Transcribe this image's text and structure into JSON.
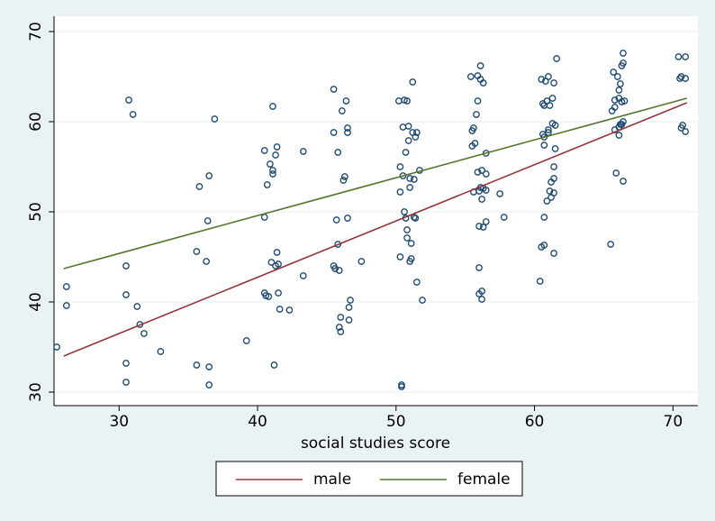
{
  "chart_data": {
    "type": "scatter",
    "xlabel": "social studies score",
    "xlim": [
      25.3,
      71.8
    ],
    "ylim": [
      28.5,
      71.7
    ],
    "xticks": [
      30,
      40,
      50,
      60,
      70
    ],
    "yticks": [
      30,
      40,
      50,
      60,
      70
    ],
    "grid": true,
    "color": "#1a476f",
    "x": [
      25.5,
      26.2,
      26.2,
      30.5,
      30.5,
      30.5,
      30.5,
      30.7,
      31,
      31.3,
      31.5,
      31.8,
      33,
      35.6,
      35.6,
      35.8,
      36.3,
      36.4,
      36.5,
      36.5,
      36.5,
      36.9,
      39.2,
      40.5,
      40.5,
      40.5,
      40.6,
      40.7,
      40.8,
      40.9,
      41,
      41.1,
      41.1,
      41.1,
      41.2,
      41.3,
      41.3,
      41.4,
      41.4,
      41.5,
      41.5,
      41.6,
      42.3,
      43.3,
      43.3,
      45.5,
      45.5,
      45.5,
      45.6,
      45.7,
      45.8,
      45.8,
      45.9,
      45.9,
      46,
      46,
      46.1,
      46.2,
      46.3,
      46.4,
      46.5,
      46.5,
      46.5,
      46.6,
      46.6,
      46.7,
      47.5,
      50.2,
      50.3,
      50.3,
      50.3,
      50.4,
      50.4,
      50.5,
      50.5,
      50.6,
      50.6,
      50.7,
      50.7,
      50.8,
      50.8,
      50.8,
      50.9,
      50.9,
      51,
      51,
      51,
      51.1,
      51.1,
      51.2,
      51.2,
      51.3,
      51.3,
      51.4,
      51.4,
      51.5,
      51.5,
      51.7,
      51.9,
      55.4,
      55.5,
      55.6,
      55.5,
      55.6,
      55.7,
      55.8,
      55.9,
      55.9,
      55.9,
      56,
      56,
      56,
      56,
      56.1,
      56.1,
      56.1,
      56.2,
      56.2,
      56.2,
      56.2,
      56.3,
      56.3,
      56.3,
      56.5,
      56.5,
      56.5,
      56.5,
      57.5,
      57.8,
      60.4,
      60.5,
      60.5,
      60.6,
      60.6,
      60.7,
      60.7,
      60.7,
      60.7,
      60.7,
      60.8,
      60.9,
      60.9,
      61,
      61,
      61,
      61.1,
      61.1,
      61.2,
      61.2,
      61.3,
      61.3,
      61.4,
      61.4,
      61.4,
      61.4,
      61.4,
      61.5,
      61.5,
      61.6,
      65.5,
      65.6,
      65.7,
      65.8,
      65.8,
      65.8,
      65.9,
      66,
      66.1,
      66.1,
      66.1,
      66.1,
      66.2,
      66.2,
      66.3,
      66.3,
      66.3,
      66.4,
      66.4,
      66.4,
      66.4,
      66.5,
      70.4,
      70.5,
      70.6,
      70.6,
      70.7,
      70.9,
      70.9,
      70.9
    ],
    "values": [
      35,
      41.7,
      39.6,
      44,
      40.8,
      33.2,
      31.1,
      62.4,
      60.8,
      39.5,
      37.5,
      36.5,
      34.5,
      45.6,
      33,
      52.8,
      44.5,
      49,
      54,
      32.8,
      30.8,
      60.3,
      35.7,
      56.8,
      49.4,
      41,
      40.7,
      53,
      40.6,
      55.3,
      44.4,
      54.6,
      61.7,
      54.2,
      33,
      56.3,
      44,
      45.5,
      57.2,
      44.2,
      41,
      39.2,
      39.1,
      56.7,
      42.9,
      63.6,
      58.8,
      44,
      43.7,
      49.1,
      56.6,
      46.4,
      43.5,
      37.2,
      38.3,
      36.7,
      61.2,
      53.5,
      53.9,
      62.3,
      58.8,
      59.3,
      49.3,
      39.4,
      38,
      40.2,
      44.5,
      62.3,
      55,
      52.2,
      45,
      30.8,
      30.6,
      59.4,
      54,
      50,
      62.4,
      56.6,
      49.3,
      62.3,
      48,
      47.1,
      57.9,
      59.5,
      52.7,
      53.7,
      44.5,
      44.8,
      46.5,
      64.4,
      58.8,
      53.6,
      49.4,
      58.3,
      49.3,
      42.2,
      58.8,
      54.6,
      40.2,
      65,
      59,
      59.3,
      57.3,
      52.2,
      57.6,
      60.8,
      62.3,
      65.1,
      54.4,
      43.8,
      40.9,
      48.4,
      52.3,
      66.2,
      64.7,
      52.7,
      54.6,
      41.2,
      40.3,
      51.4,
      64.3,
      48.3,
      52.6,
      52.4,
      56.5,
      54.2,
      48.9,
      52,
      49.4,
      42.3,
      46.1,
      64.7,
      62,
      58.6,
      61.8,
      49.4,
      46.3,
      57.4,
      58.3,
      64.5,
      62.3,
      51.2,
      65,
      59.1,
      58.8,
      61.8,
      52.3,
      51.6,
      53.3,
      59.8,
      62.6,
      64.3,
      53.7,
      45.4,
      55,
      52.1,
      59.6,
      57,
      67,
      46.4,
      61.2,
      65.5,
      61.6,
      62.4,
      59.1,
      54.3,
      65,
      63.5,
      62.6,
      59.4,
      58.5,
      64.2,
      59.7,
      66.2,
      62.2,
      59.7,
      67.6,
      66.5,
      60,
      53.4,
      62.3,
      67.2,
      64.8,
      59.3,
      65,
      59.6,
      67.2,
      64.8,
      58.9
    ],
    "fit_lines": [
      {
        "name": "male",
        "color": "#90353b",
        "x": [
          26,
          71
        ],
        "values": [
          34,
          62.1
        ]
      },
      {
        "name": "female",
        "color": "#55752f",
        "x": [
          26,
          71
        ],
        "values": [
          43.7,
          62.6
        ]
      }
    ]
  }
}
